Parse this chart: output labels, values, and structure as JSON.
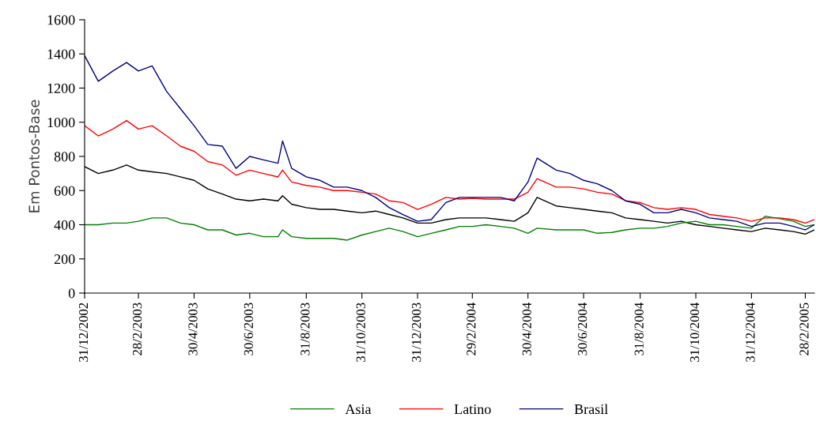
{
  "chart_data": {
    "type": "line",
    "ylabel": "Em Pontos-Base",
    "x": [
      "2002-12-31",
      "2003-01-15",
      "2003-01-31",
      "2003-02-15",
      "2003-02-28",
      "2003-03-15",
      "2003-03-31",
      "2003-04-15",
      "2003-04-30",
      "2003-05-15",
      "2003-05-31",
      "2003-06-15",
      "2003-06-30",
      "2003-07-15",
      "2003-07-31",
      "2003-08-05",
      "2003-08-15",
      "2003-08-31",
      "2003-09-15",
      "2003-09-30",
      "2003-10-15",
      "2003-10-31",
      "2003-11-15",
      "2003-11-30",
      "2003-12-15",
      "2003-12-31",
      "2004-01-15",
      "2004-01-31",
      "2004-02-15",
      "2004-02-29",
      "2004-03-15",
      "2004-03-31",
      "2004-04-15",
      "2004-04-30",
      "2004-05-10",
      "2004-05-31",
      "2004-06-15",
      "2004-06-30",
      "2004-07-15",
      "2004-07-31",
      "2004-08-15",
      "2004-08-31",
      "2004-09-15",
      "2004-09-30",
      "2004-10-15",
      "2004-10-31",
      "2004-11-15",
      "2004-11-30",
      "2004-12-15",
      "2004-12-31",
      "2005-01-15",
      "2005-01-31",
      "2005-02-15",
      "2005-02-28",
      "2005-03-10"
    ],
    "series": [
      {
        "color": "#000000",
        "values": [
          740,
          700,
          720,
          750,
          720,
          710,
          700,
          680,
          660,
          610,
          580,
          550,
          540,
          550,
          540,
          570,
          520,
          500,
          490,
          490,
          480,
          470,
          480,
          460,
          440,
          410,
          410,
          430,
          440,
          440,
          440,
          430,
          420,
          470,
          560,
          510,
          500,
          490,
          480,
          470,
          440,
          430,
          420,
          410,
          420,
          400,
          390,
          380,
          370,
          360,
          380,
          370,
          360,
          345,
          370
        ]
      },
      {
        "name": "Asia",
        "color": "#008000",
        "values": [
          400,
          400,
          410,
          410,
          420,
          440,
          440,
          410,
          400,
          370,
          370,
          340,
          350,
          330,
          330,
          370,
          330,
          320,
          320,
          320,
          310,
          340,
          360,
          380,
          360,
          330,
          350,
          370,
          390,
          390,
          400,
          390,
          380,
          350,
          380,
          370,
          370,
          370,
          350,
          355,
          370,
          380,
          380,
          390,
          410,
          420,
          400,
          400,
          390,
          380,
          450,
          435,
          420,
          390,
          400
        ]
      },
      {
        "name": "Latino",
        "color": "#ff0000",
        "values": [
          980,
          920,
          960,
          1010,
          960,
          980,
          920,
          860,
          830,
          770,
          750,
          690,
          720,
          700,
          680,
          720,
          650,
          630,
          620,
          600,
          600,
          590,
          580,
          540,
          530,
          490,
          520,
          560,
          550,
          555,
          550,
          550,
          550,
          590,
          670,
          620,
          620,
          610,
          590,
          580,
          540,
          530,
          500,
          490,
          500,
          490,
          460,
          450,
          440,
          420,
          440,
          440,
          430,
          410,
          430
        ]
      },
      {
        "name": "Brasil",
        "color": "#000080",
        "values": [
          1390,
          1240,
          1300,
          1350,
          1300,
          1330,
          1180,
          1080,
          980,
          870,
          860,
          730,
          800,
          780,
          760,
          890,
          730,
          680,
          660,
          620,
          620,
          600,
          560,
          500,
          460,
          420,
          430,
          530,
          560,
          560,
          560,
          560,
          540,
          650,
          790,
          720,
          700,
          660,
          640,
          600,
          540,
          520,
          470,
          470,
          490,
          470,
          440,
          430,
          420,
          390,
          410,
          410,
          390,
          370,
          400
        ]
      }
    ],
    "xlim": [
      "2002-12-31",
      "2005-03-10"
    ],
    "xticks": [
      {
        "value": "2002-12-31",
        "label": "31/12/2002"
      },
      {
        "value": "2003-02-28",
        "label": "28/2/2003"
      },
      {
        "value": "2003-04-30",
        "label": "30/4/2003"
      },
      {
        "value": "2003-06-30",
        "label": "30/6/2003"
      },
      {
        "value": "2003-08-31",
        "label": "31/8/2003"
      },
      {
        "value": "2003-10-31",
        "label": "31/10/2003"
      },
      {
        "value": "2003-12-31",
        "label": "31/12/2003"
      },
      {
        "value": "2004-02-29",
        "label": "29/2/2004"
      },
      {
        "value": "2004-04-30",
        "label": "30/4/2004"
      },
      {
        "value": "2004-06-30",
        "label": "30/6/2004"
      },
      {
        "value": "2004-08-31",
        "label": "31/8/2004"
      },
      {
        "value": "2004-10-31",
        "label": "31/10/2004"
      },
      {
        "value": "2004-12-31",
        "label": "31/12/2004"
      },
      {
        "value": "2005-02-28",
        "label": "28/2/2005"
      }
    ],
    "ylim": [
      0,
      1600
    ],
    "yticks": [
      0,
      200,
      400,
      600,
      800,
      1000,
      1200,
      1400,
      1600
    ],
    "grid": false,
    "legend": "bottom",
    "marker": "none",
    "line_style": "solid"
  }
}
